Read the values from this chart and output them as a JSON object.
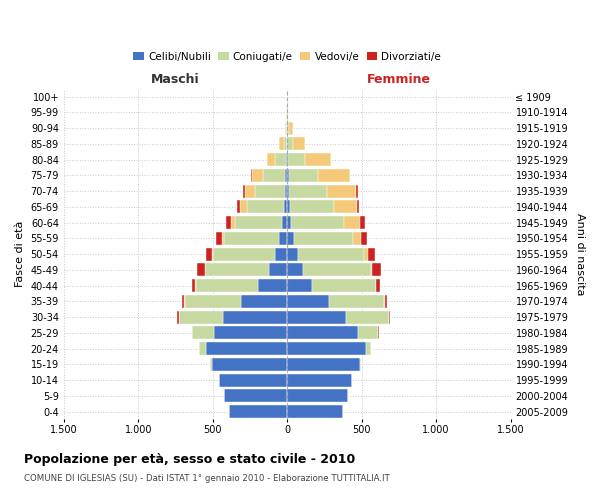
{
  "age_groups_bottom_to_top": [
    "0-4",
    "5-9",
    "10-14",
    "15-19",
    "20-24",
    "25-29",
    "30-34",
    "35-39",
    "40-44",
    "45-49",
    "50-54",
    "55-59",
    "60-64",
    "65-69",
    "70-74",
    "75-79",
    "80-84",
    "85-89",
    "90-94",
    "95-99",
    "100+"
  ],
  "birth_years_bottom_to_top": [
    "2005-2009",
    "2000-2004",
    "1995-1999",
    "1990-1994",
    "1985-1989",
    "1980-1984",
    "1975-1979",
    "1970-1974",
    "1965-1969",
    "1960-1964",
    "1955-1959",
    "1950-1954",
    "1945-1949",
    "1940-1944",
    "1935-1939",
    "1930-1934",
    "1925-1929",
    "1920-1924",
    "1915-1919",
    "1910-1914",
    "≤ 1909"
  ],
  "males": {
    "celibi": [
      390,
      425,
      455,
      505,
      545,
      490,
      430,
      310,
      195,
      125,
      85,
      55,
      35,
      22,
      18,
      12,
      5,
      2,
      1,
      1,
      1
    ],
    "coniugati": [
      0,
      0,
      3,
      12,
      45,
      148,
      298,
      378,
      418,
      425,
      415,
      368,
      315,
      248,
      195,
      148,
      75,
      22,
      7,
      2,
      0
    ],
    "vedovi": [
      0,
      0,
      0,
      0,
      0,
      0,
      1,
      2,
      3,
      5,
      8,
      15,
      28,
      48,
      68,
      78,
      55,
      28,
      10,
      2,
      0
    ],
    "divorziati": [
      0,
      0,
      0,
      0,
      0,
      3,
      8,
      18,
      22,
      48,
      38,
      42,
      32,
      18,
      14,
      8,
      0,
      0,
      0,
      0,
      0
    ]
  },
  "females": {
    "nubili": [
      378,
      408,
      435,
      488,
      528,
      478,
      398,
      278,
      168,
      105,
      72,
      45,
      28,
      18,
      15,
      10,
      5,
      2,
      1,
      1,
      1
    ],
    "coniugate": [
      0,
      0,
      2,
      8,
      38,
      135,
      285,
      375,
      425,
      455,
      445,
      395,
      355,
      295,
      255,
      195,
      112,
      38,
      10,
      2,
      0
    ],
    "vedove": [
      0,
      0,
      0,
      0,
      0,
      0,
      1,
      2,
      5,
      12,
      25,
      55,
      105,
      158,
      195,
      215,
      178,
      78,
      25,
      5,
      1
    ],
    "divorziate": [
      0,
      0,
      0,
      0,
      0,
      2,
      5,
      15,
      22,
      58,
      48,
      42,
      32,
      12,
      8,
      5,
      2,
      0,
      0,
      0,
      0
    ]
  },
  "colors": {
    "celibi": "#4472c4",
    "coniugati": "#c5d9a0",
    "vedovi": "#f5c97a",
    "divorziati": "#cc2222"
  },
  "xlim": 1500,
  "title": "Popolazione per età, sesso e stato civile - 2010",
  "subtitle": "COMUNE DI IGLESIAS (SU) - Dati ISTAT 1° gennaio 2010 - Elaborazione TUTTITALIA.IT",
  "label_maschi": "Maschi",
  "label_femmine": "Femmine",
  "ylabel_left": "Fasce di età",
  "ylabel_right": "Anni di nascita",
  "legend_labels": [
    "Celibi/Nubili",
    "Coniugati/e",
    "Vedovi/e",
    "Divorziati/e"
  ],
  "bg_color": "#ffffff",
  "grid_color": "#c8c8c8"
}
